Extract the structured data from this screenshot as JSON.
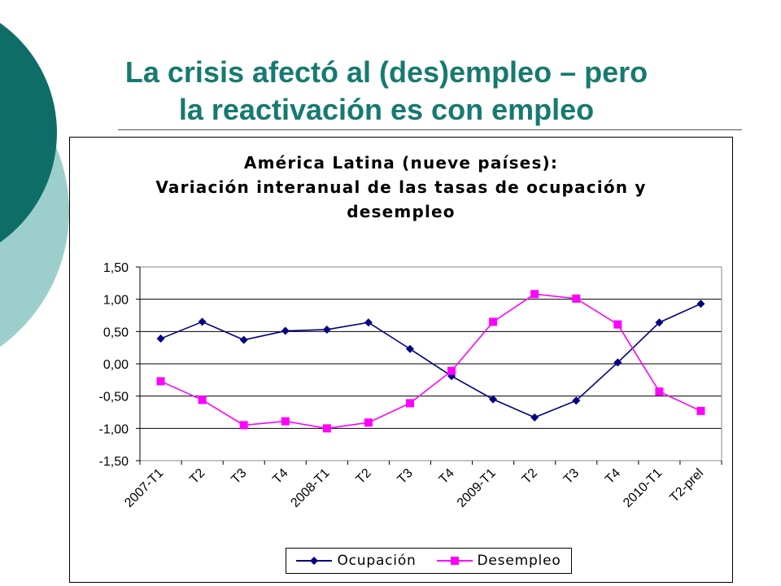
{
  "slide": {
    "title_line1": "La crisis afectó al (des)empleo – pero",
    "title_line2": "la reactivación es con empleo"
  },
  "colors": {
    "title": "#167a70",
    "deco_dark": "#0f6d68",
    "deco_light": "#9ccfcb",
    "ocupacion": "#000080",
    "desempleo": "#ff00ff"
  },
  "chart_data": {
    "type": "line",
    "title_lines": [
      "América Latina (nueve países):",
      "Variación interanual de las tasas de ocupación y",
      "desempleo"
    ],
    "categories": [
      "2007-T1",
      "T2",
      "T3",
      "T4",
      "2008-T1",
      "T2",
      "T3",
      "T4",
      "2009-T1",
      "T2",
      "T3",
      "T4",
      "2010-T1",
      "T2-prel"
    ],
    "series": [
      {
        "name": "Ocupación",
        "marker": "diamond",
        "color": "#000080",
        "values": [
          0.39,
          0.65,
          0.37,
          0.51,
          0.53,
          0.64,
          0.23,
          -0.19,
          -0.55,
          -0.83,
          -0.57,
          0.02,
          0.64,
          0.93
        ]
      },
      {
        "name": "Desempleo",
        "marker": "square",
        "color": "#ff00ff",
        "values": [
          -0.27,
          -0.56,
          -0.95,
          -0.89,
          -1.0,
          -0.91,
          -0.61,
          -0.11,
          0.65,
          1.08,
          1.01,
          0.61,
          -0.43,
          -0.73
        ]
      }
    ],
    "ylim": [
      -1.5,
      1.5
    ],
    "yticks": [
      -1.5,
      -1.0,
      -0.5,
      0.0,
      0.5,
      1.0,
      1.5
    ],
    "ytick_labels": [
      "-1,50",
      "-1,00",
      "-0,50",
      "0,00",
      "0,50",
      "1,00",
      "1,50"
    ],
    "grid": true,
    "legend_position": "bottom"
  }
}
